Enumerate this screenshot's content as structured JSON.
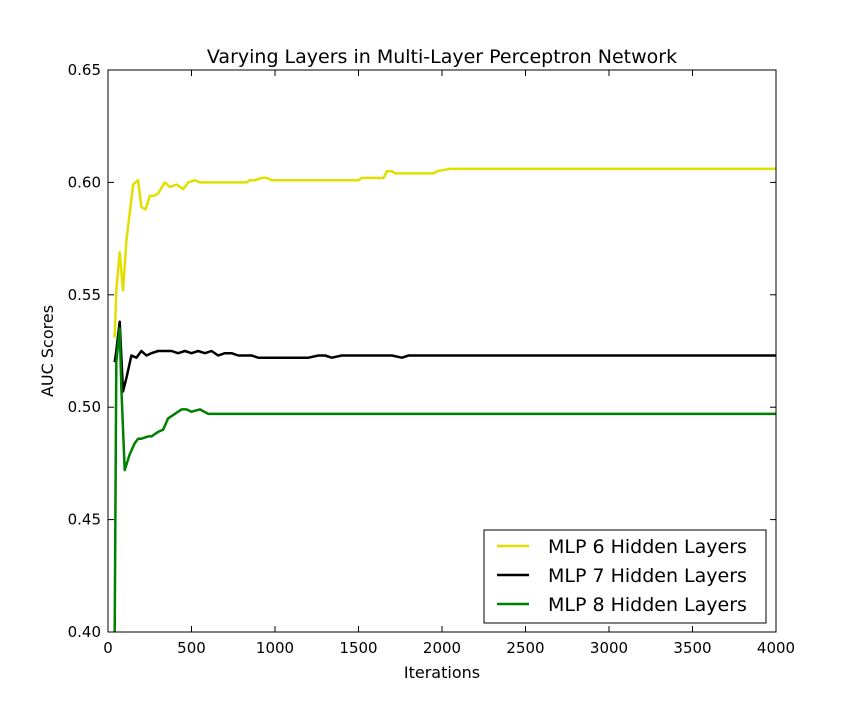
{
  "chart_data": {
    "type": "line",
    "title": "Varying Layers in Multi-Layer Perceptron Network",
    "xlabel": "Iterations",
    "ylabel": "AUC Scores",
    "xlim": [
      0,
      4000
    ],
    "ylim": [
      0.4,
      0.65
    ],
    "xticks": [
      "0",
      "500",
      "1000",
      "1500",
      "2000",
      "2500",
      "3000",
      "3500",
      "4000"
    ],
    "yticks": [
      "0.40",
      "0.45",
      "0.50",
      "0.55",
      "0.60",
      "0.65"
    ],
    "grid": false,
    "legend_position": "bottom-right",
    "series": [
      {
        "name": "MLP 6 Hidden Layers",
        "color": "#e0e000",
        "x": [
          40,
          50,
          70,
          90,
          110,
          150,
          180,
          200,
          225,
          250,
          275,
          300,
          340,
          370,
          410,
          450,
          480,
          520,
          550,
          580,
          620,
          700,
          830,
          850,
          880,
          920,
          950,
          980,
          1000,
          1200,
          1280,
          1300,
          1500,
          1520,
          1650,
          1670,
          1700,
          1720,
          1950,
          1970,
          2050,
          2100,
          3100,
          3150,
          3400,
          3450,
          4000
        ],
        "y": [
          0.531,
          0.552,
          0.569,
          0.552,
          0.574,
          0.599,
          0.601,
          0.589,
          0.588,
          0.594,
          0.594,
          0.595,
          0.6,
          0.598,
          0.599,
          0.597,
          0.6,
          0.601,
          0.6,
          0.6,
          0.6,
          0.6,
          0.6,
          0.601,
          0.601,
          0.602,
          0.602,
          0.601,
          0.601,
          0.601,
          0.601,
          0.601,
          0.601,
          0.602,
          0.602,
          0.605,
          0.605,
          0.604,
          0.604,
          0.605,
          0.606,
          0.606,
          0.606,
          0.606,
          0.606,
          0.606,
          0.606
        ]
      },
      {
        "name": "MLP 7 Hidden Layers",
        "color": "#000000",
        "x": [
          40,
          50,
          70,
          90,
          110,
          140,
          170,
          200,
          230,
          260,
          300,
          340,
          380,
          420,
          460,
          500,
          540,
          580,
          620,
          660,
          700,
          740,
          780,
          820,
          860,
          900,
          940,
          980,
          1020,
          1060,
          1100,
          1140,
          1200,
          1260,
          1300,
          1340,
          1400,
          1500,
          1600,
          1700,
          1760,
          1800,
          2000,
          2500,
          3000,
          3500,
          4000
        ],
        "y": [
          0.52,
          0.525,
          0.538,
          0.507,
          0.513,
          0.523,
          0.522,
          0.525,
          0.523,
          0.524,
          0.525,
          0.525,
          0.525,
          0.524,
          0.525,
          0.524,
          0.525,
          0.524,
          0.525,
          0.523,
          0.524,
          0.524,
          0.523,
          0.523,
          0.523,
          0.522,
          0.522,
          0.522,
          0.522,
          0.522,
          0.522,
          0.522,
          0.522,
          0.523,
          0.523,
          0.522,
          0.523,
          0.523,
          0.523,
          0.523,
          0.522,
          0.523,
          0.523,
          0.523,
          0.523,
          0.523,
          0.523
        ]
      },
      {
        "name": "MLP 8 Hidden Layers",
        "color": "#008000",
        "x": [
          40,
          50,
          70,
          80,
          100,
          130,
          160,
          180,
          200,
          240,
          260,
          300,
          330,
          360,
          400,
          440,
          470,
          500,
          550,
          600,
          700,
          800,
          1000,
          1500,
          2000,
          2500,
          3000,
          3500,
          4000
        ],
        "y": [
          0.4,
          0.52,
          0.535,
          0.508,
          0.472,
          0.479,
          0.484,
          0.486,
          0.486,
          0.487,
          0.487,
          0.489,
          0.49,
          0.495,
          0.497,
          0.499,
          0.499,
          0.498,
          0.499,
          0.497,
          0.497,
          0.497,
          0.497,
          0.497,
          0.497,
          0.497,
          0.497,
          0.497,
          0.497
        ]
      }
    ]
  }
}
